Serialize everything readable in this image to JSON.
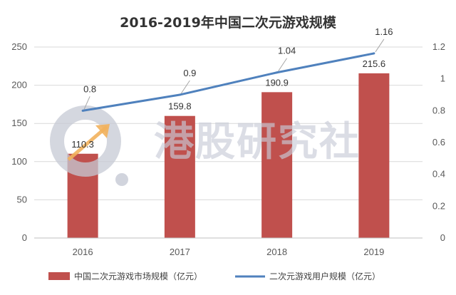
{
  "chart_data": {
    "type": "bar+line",
    "title": "2016-2019年中国二次元游戏规模",
    "categories": [
      "2016",
      "2017",
      "2018",
      "2019"
    ],
    "series": [
      {
        "name": "中国二次元游戏市场规模（亿元）",
        "type": "bar",
        "axis": "left",
        "values": [
          110.3,
          159.8,
          190.9,
          215.6
        ],
        "color": "#c0504d"
      },
      {
        "name": "二次元游戏用户规模（亿元）",
        "type": "line",
        "axis": "right",
        "values": [
          0.8,
          0.9,
          1.04,
          1.16
        ],
        "color": "#4f81bd"
      }
    ],
    "y_left": {
      "ylim": [
        0,
        250
      ],
      "ticks": [
        "0",
        "50",
        "100",
        "150",
        "200",
        "250"
      ]
    },
    "y_right": {
      "ylim": [
        0,
        1.2
      ],
      "ticks": [
        "0",
        "0.2",
        "0.4",
        "0.6",
        "0.8",
        "1",
        "1.2"
      ]
    },
    "bar_labels": [
      "110.3",
      "159.8",
      "190.9",
      "215.6"
    ],
    "line_labels": [
      "0.8",
      "0.9",
      "1.04",
      "1.16"
    ],
    "grid": true,
    "legend_position": "bottom"
  },
  "watermark": {
    "text": "港股研究社",
    "colors": {
      "ring": "#c6c9d4",
      "arrow": "#f2b15c"
    }
  }
}
